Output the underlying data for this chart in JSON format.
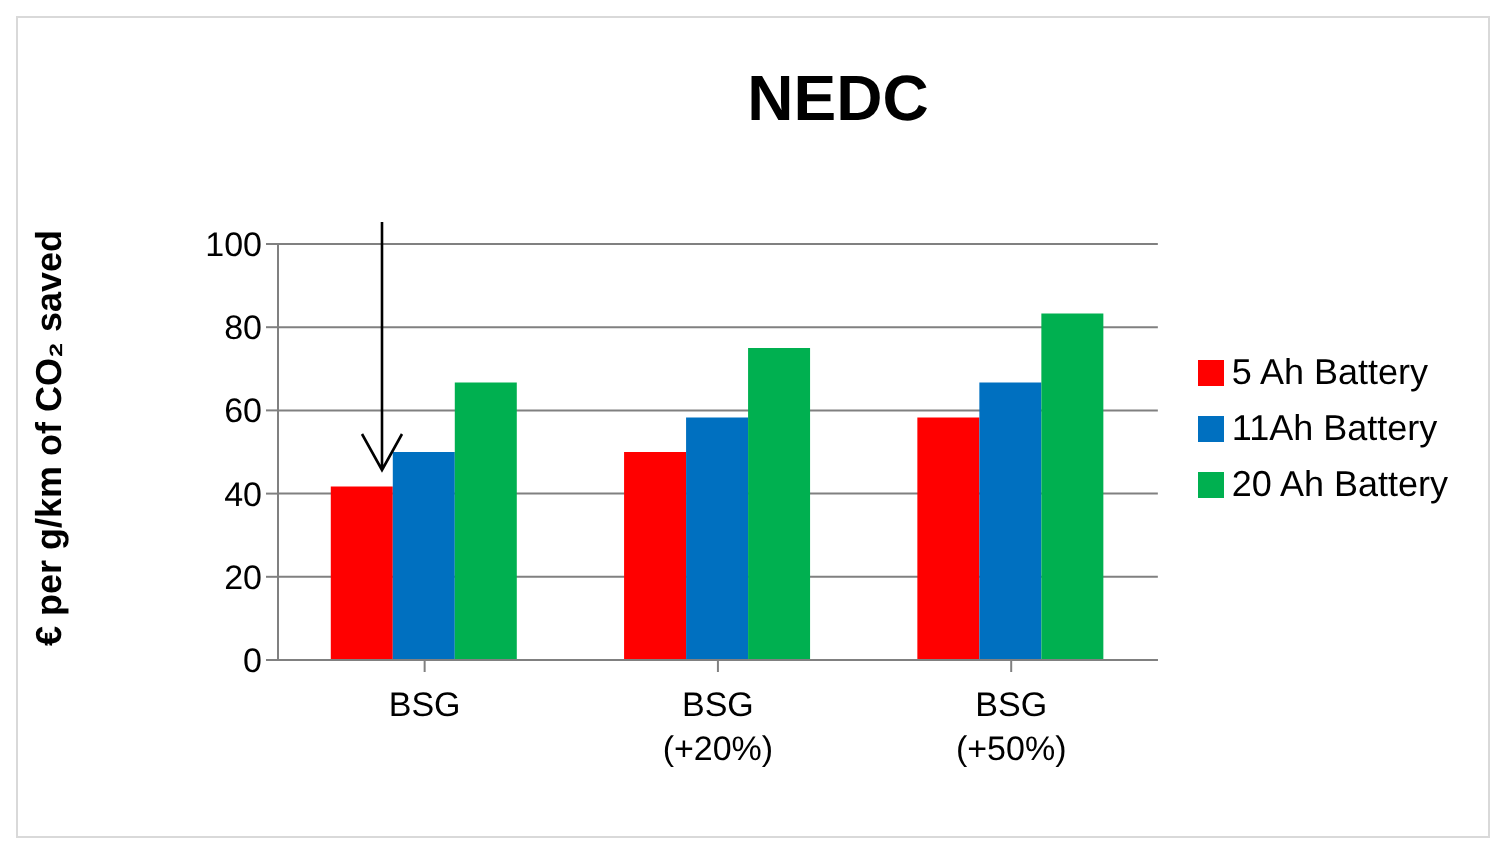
{
  "chart_data": {
    "type": "bar",
    "title": "NEDC",
    "ylabel": "€ per g/km of CO₂ saved",
    "categories": [
      "BSG",
      "BSG (+20%)",
      "BSG (+50%)"
    ],
    "series": [
      {
        "name": "5 Ah Battery",
        "color": "#ff0000",
        "values": [
          41.7,
          50,
          58.3
        ]
      },
      {
        "name": "11Ah Battery",
        "color": "#0070c0",
        "values": [
          50,
          58.3,
          66.7
        ]
      },
      {
        "name": "20 Ah Battery",
        "color": "#00b050",
        "values": [
          66.7,
          75,
          83.3
        ]
      }
    ],
    "ylim": [
      0,
      100
    ],
    "yticks": [
      0,
      20,
      40,
      60,
      80,
      100
    ],
    "grid": "y",
    "legend": "right"
  }
}
